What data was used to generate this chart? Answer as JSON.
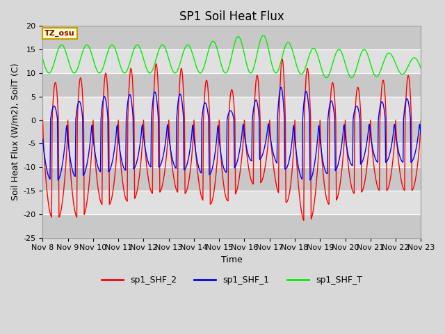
{
  "title": "SP1 Soil Heat Flux",
  "ylabel": "Soil Heat Flux (W/m2), SoilT (C)",
  "xlabel": "Time",
  "ylim": [
    -25,
    20
  ],
  "yticks": [
    -25,
    -20,
    -15,
    -10,
    -5,
    0,
    5,
    10,
    15,
    20
  ],
  "xtick_labels": [
    "Nov 8",
    "Nov 9",
    "Nov 10",
    "Nov 11",
    "Nov 12",
    "Nov 13",
    "Nov 14",
    "Nov 15",
    "Nov 16",
    "Nov 17",
    "Nov 18",
    "Nov 19",
    "Nov 20",
    "Nov 21",
    "Nov 22",
    "Nov 23"
  ],
  "color_red": "#ff0000",
  "color_blue": "#0000ff",
  "color_green": "#00ee00",
  "bg_color": "#d8d8d8",
  "plot_bg_light": "#e0e0e0",
  "plot_bg_dark": "#c8c8c8",
  "legend_labels": [
    "sp1_SHF_2",
    "sp1_SHF_1",
    "sp1_SHF_T"
  ],
  "tz_label": "TZ_osu",
  "title_fontsize": 12,
  "label_fontsize": 9,
  "tick_fontsize": 8,
  "line_width": 1.0
}
